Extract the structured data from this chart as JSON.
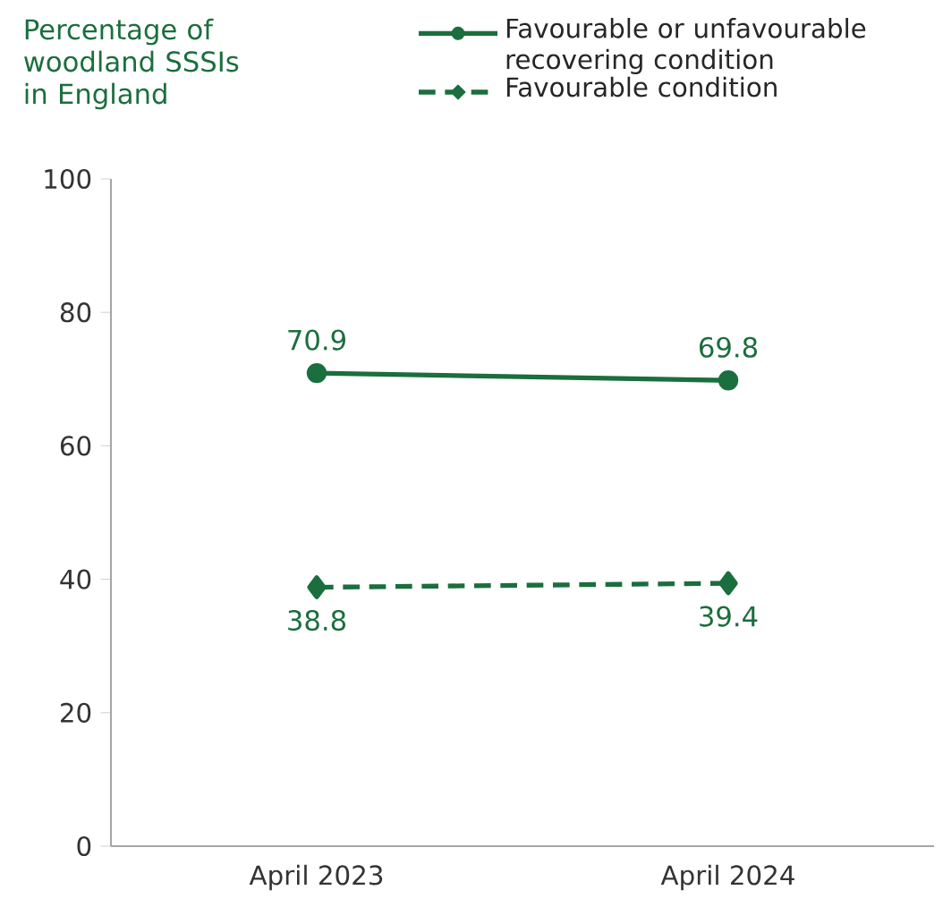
{
  "chart_data": {
    "type": "line",
    "title": "Percentage of woodland SSSIs in England",
    "categories": [
      "April 2023",
      "April 2024"
    ],
    "series": [
      {
        "name": "Favourable or unfavourable recovering condition",
        "color": "#1b6e3d",
        "values": [
          70.9,
          69.8
        ],
        "marker": "circle",
        "line_style": "solid"
      },
      {
        "name": "Favourable condition",
        "color": "#1b6e3d",
        "values": [
          38.8,
          39.4
        ],
        "marker": "diamond",
        "line_style": "dashed"
      }
    ],
    "ylim": [
      0,
      100
    ],
    "yticks": [
      0,
      20,
      40,
      60,
      80,
      100
    ],
    "grid": false,
    "legend": "top right",
    "data_labels": true
  }
}
